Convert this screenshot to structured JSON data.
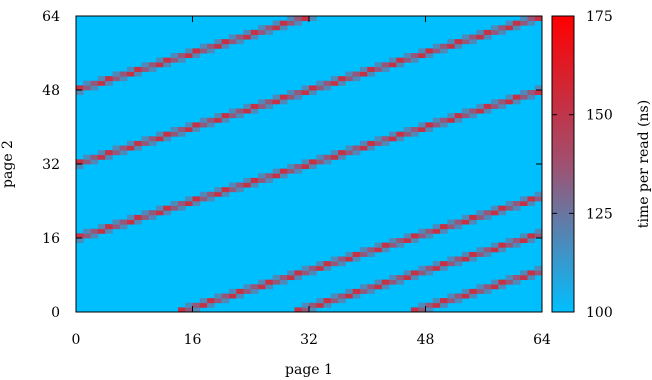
{
  "chart_data": {
    "type": "heatmap",
    "xlabel": "page 1",
    "ylabel": "page 2",
    "colorbar_label": "time per read (ns)",
    "xlim": [
      0,
      64
    ],
    "ylim": [
      0,
      64
    ],
    "xticks": [
      "0",
      "16",
      "32",
      "48",
      "64"
    ],
    "yticks": [
      "0",
      "16",
      "32",
      "48",
      "64"
    ],
    "x_tick_values": [
      0,
      16,
      32,
      48,
      64
    ],
    "y_tick_values": [
      0,
      16,
      32,
      48,
      64
    ],
    "colorbar_range": [
      100,
      175
    ],
    "colorbar_ticks": [
      "100",
      "125",
      "150",
      "175"
    ],
    "colorbar_tick_values": [
      100,
      125,
      150,
      175
    ],
    "grid_size": 64,
    "background_value": 100,
    "stripe_values": [
      118,
      135,
      152
    ],
    "stripes": [
      {
        "x_start": 0,
        "y_start": 16,
        "slope": 0.5
      },
      {
        "x_start": 0,
        "y_start": 32,
        "slope": 0.5
      },
      {
        "x_start": 0,
        "y_start": 48,
        "slope": 0.5
      },
      {
        "x_start": 14,
        "y_start": 0,
        "slope": 0.5
      },
      {
        "x_start": 30,
        "y_start": 0,
        "slope": 0.5
      },
      {
        "x_start": 46,
        "y_start": 0,
        "slope": 0.5
      }
    ],
    "colors": {
      "low": "#00bfff",
      "mid": "#a05070",
      "high": "#ff0000"
    }
  }
}
